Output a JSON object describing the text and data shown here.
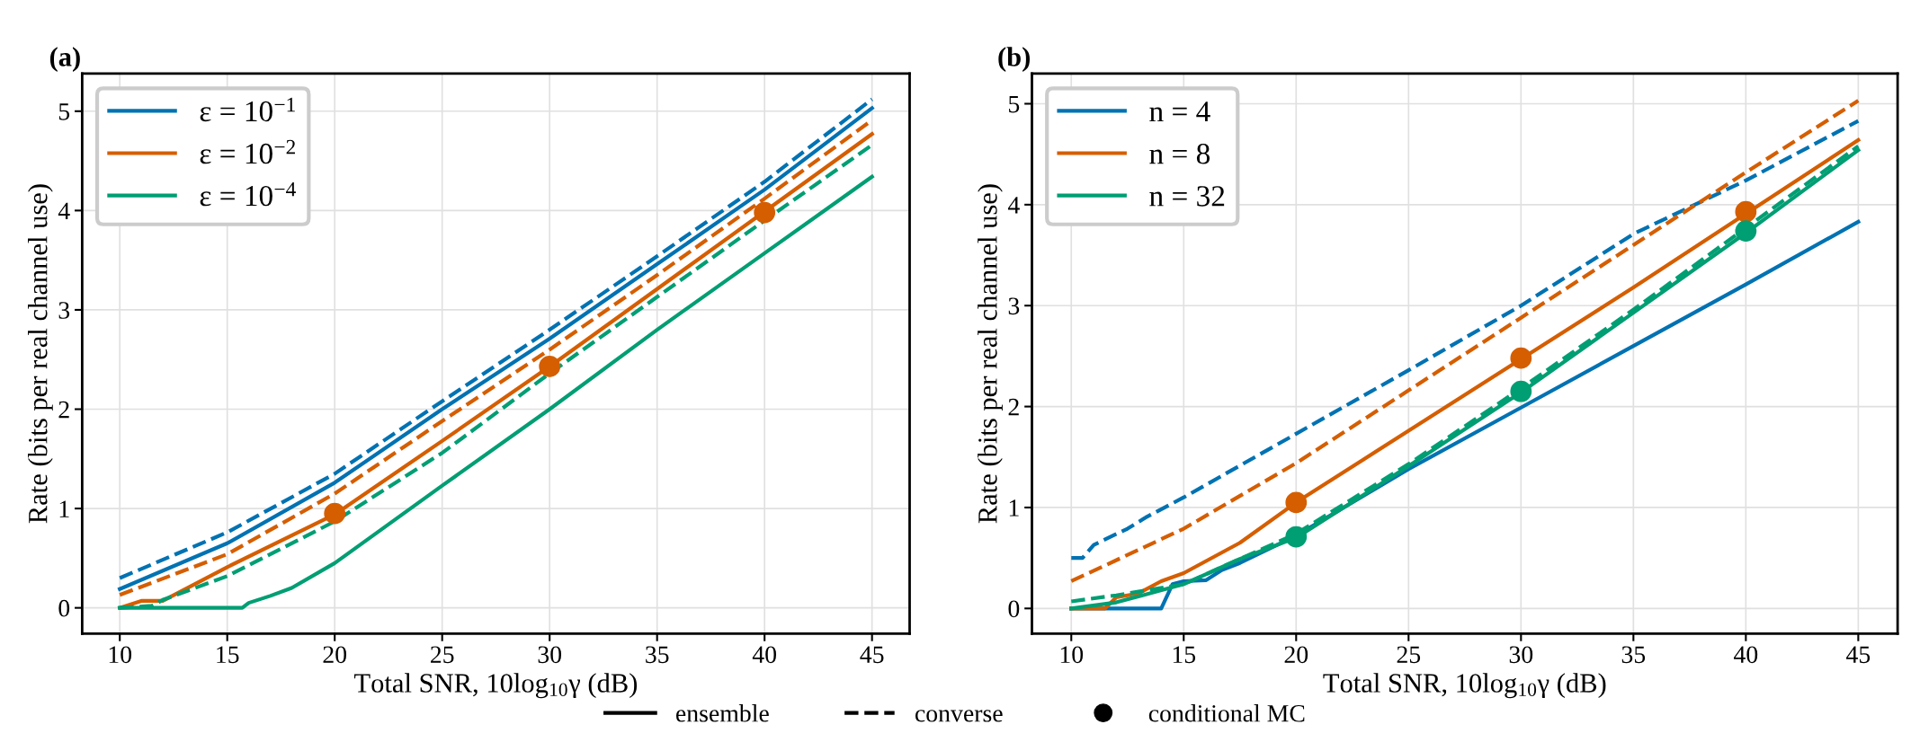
{
  "chart_data": [
    {
      "type": "line",
      "title": "(a)",
      "xlabel": "Total SNR, 10log$_{10}$γ (dB)",
      "ylabel": "Rate (bits per real channel use)",
      "xlim": [
        8.25,
        46.75
      ],
      "ylim": [
        -0.26,
        5.38
      ],
      "xticks": [
        10,
        15,
        20,
        25,
        30,
        35,
        40,
        45
      ],
      "yticks": [
        0,
        1,
        2,
        3,
        4,
        5
      ],
      "grid": true,
      "legend": "top left",
      "annotations": [
        "ensemble",
        "converse",
        "conditional MC"
      ],
      "series": [
        {
          "name": "ε = 10$^{−1}$",
          "color": "#0072b2",
          "line_style": "solid",
          "x": [
            10,
            15,
            20,
            25,
            30,
            35,
            40,
            45
          ],
          "values": [
            0.19,
            0.65,
            1.26,
            2.0,
            2.71,
            3.46,
            4.21,
            5.03
          ]
        },
        {
          "name": "ε = 10$^{−2}$",
          "color": "#d55e00",
          "line_style": "solid",
          "x": [
            10,
            11,
            12,
            15,
            20,
            25,
            30,
            35,
            40,
            45
          ],
          "values": [
            0,
            0.07,
            0.07,
            0.41,
            0.94,
            1.68,
            2.43,
            3.21,
            3.99,
            4.77
          ]
        },
        {
          "name": "ε = 10$^{−4}$",
          "color": "#009e73",
          "line_style": "solid",
          "x": [
            10,
            15.7,
            16,
            17,
            18,
            20,
            25,
            30,
            35,
            40,
            45
          ],
          "values": [
            0,
            0,
            0.05,
            0.12,
            0.2,
            0.45,
            1.23,
            2.0,
            2.8,
            3.57,
            4.34
          ]
        },
        {
          "color": "#0072b2",
          "line_style": "dashed",
          "x": [
            10,
            15,
            20,
            25,
            30,
            35,
            40,
            45
          ],
          "values": [
            0.3,
            0.76,
            1.35,
            2.08,
            2.8,
            3.54,
            4.29,
            5.12
          ]
        },
        {
          "color": "#d55e00",
          "line_style": "dashed",
          "x": [
            10,
            15,
            20,
            25,
            30,
            35,
            40,
            45
          ],
          "values": [
            0.13,
            0.54,
            1.15,
            1.88,
            2.6,
            3.35,
            4.12,
            4.91
          ]
        },
        {
          "color": "#009e73",
          "line_style": "dashed",
          "x": [
            10,
            11.5,
            12,
            15,
            20,
            25,
            30,
            35,
            40,
            45
          ],
          "values": [
            0,
            0.02,
            0.08,
            0.32,
            0.87,
            1.56,
            2.36,
            3.13,
            3.9,
            4.66
          ]
        },
        {
          "type": "scatter",
          "marker": "circle",
          "color": "#d55e00",
          "x": [
            20,
            30,
            40
          ],
          "values": [
            0.95,
            2.43,
            3.98
          ]
        }
      ]
    },
    {
      "type": "line",
      "title": "(b)",
      "xlabel": "Total SNR, 10log$_{10}$γ (dB)",
      "ylabel": "Rate (bits per real channel use)",
      "xlim": [
        8.25,
        46.75
      ],
      "ylim": [
        -0.25,
        5.3
      ],
      "xticks": [
        10,
        15,
        20,
        25,
        30,
        35,
        40,
        45
      ],
      "yticks": [
        0,
        1,
        2,
        3,
        4,
        5
      ],
      "grid": true,
      "legend": "top left",
      "series": [
        {
          "name": "n = 4",
          "color": "#0072b2",
          "line_style": "solid",
          "x": [
            10,
            14,
            14.5,
            15,
            16,
            16.7,
            17.5,
            20,
            25,
            30,
            35,
            40,
            45
          ],
          "values": [
            0,
            0,
            0.24,
            0.27,
            0.28,
            0.38,
            0.45,
            0.72,
            1.38,
            1.99,
            2.6,
            3.21,
            3.83
          ]
        },
        {
          "name": "n = 8",
          "color": "#d55e00",
          "line_style": "solid",
          "x": [
            10,
            11.5,
            12,
            13,
            14,
            15,
            17.5,
            20,
            25,
            30,
            35,
            40,
            45
          ],
          "values": [
            0,
            0,
            0.11,
            0.15,
            0.27,
            0.35,
            0.65,
            1.05,
            1.76,
            2.47,
            3.18,
            3.91,
            4.64
          ]
        },
        {
          "name": "n = 32",
          "color": "#009e73",
          "line_style": "solid",
          "x": [
            10,
            12,
            15,
            17.5,
            20,
            25,
            30,
            35,
            40,
            45
          ],
          "values": [
            0,
            0.06,
            0.24,
            0.49,
            0.7,
            1.41,
            2.14,
            2.93,
            3.72,
            4.54
          ]
        },
        {
          "color": "#0072b2",
          "line_style": "dashed",
          "x": [
            10,
            10.5,
            11,
            12.5,
            13.3,
            15,
            20,
            25,
            30,
            35,
            40,
            45
          ],
          "values": [
            0.5,
            0.5,
            0.63,
            0.79,
            0.9,
            1.1,
            1.73,
            2.36,
            3.0,
            3.71,
            4.24,
            4.83
          ]
        },
        {
          "color": "#d55e00",
          "line_style": "dashed",
          "x": [
            10,
            15,
            20,
            25,
            30,
            35,
            40,
            45
          ],
          "values": [
            0.27,
            0.79,
            1.44,
            2.16,
            2.88,
            3.6,
            4.32,
            5.03
          ]
        },
        {
          "color": "#009e73",
          "line_style": "dashed",
          "x": [
            10,
            12,
            15,
            20,
            25,
            30,
            35,
            40,
            45
          ],
          "values": [
            0.07,
            0.13,
            0.24,
            0.74,
            1.43,
            2.18,
            2.96,
            3.77,
            4.58
          ]
        },
        {
          "type": "scatter",
          "marker": "circle",
          "color": "#d55e00",
          "x": [
            20,
            30,
            40
          ],
          "values": [
            1.05,
            2.48,
            3.93
          ]
        },
        {
          "type": "scatter",
          "marker": "circle",
          "color": "#009e73",
          "x": [
            20,
            30,
            40
          ],
          "values": [
            0.71,
            2.15,
            3.74
          ]
        }
      ]
    }
  ]
}
